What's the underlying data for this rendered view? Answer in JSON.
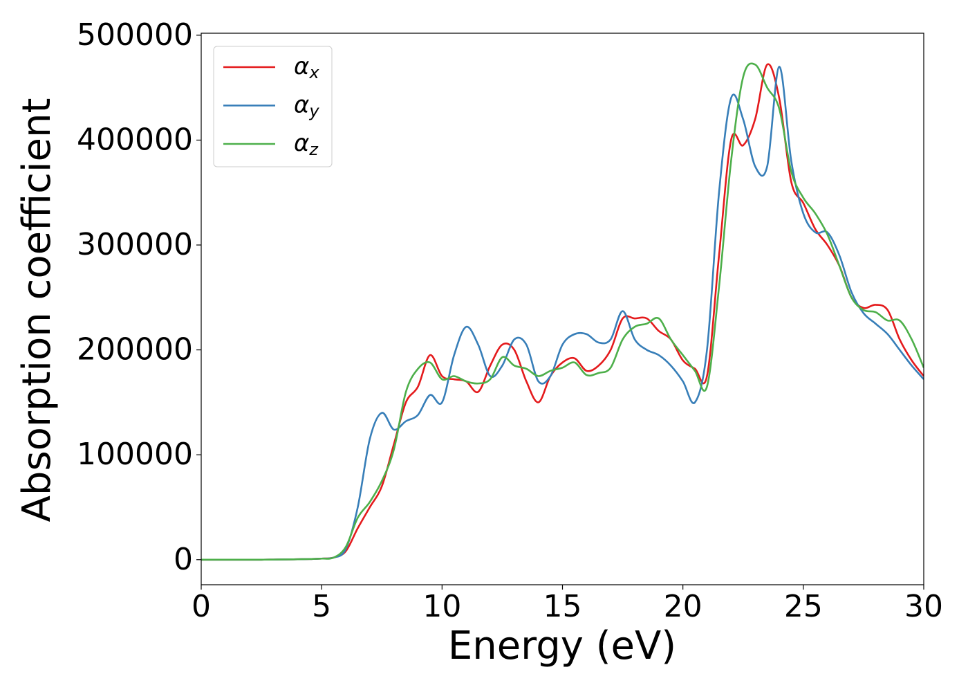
{
  "chart_data": {
    "type": "line",
    "xlabel": "Energy (eV)",
    "ylabel": "Absorption coefficient",
    "x": [
      0,
      0.5,
      1,
      1.5,
      2,
      2.5,
      3,
      3.5,
      4,
      4.5,
      5,
      5.5,
      6,
      6.5,
      7,
      7.5,
      8,
      8.5,
      9,
      9.5,
      10,
      10.5,
      11,
      11.5,
      12,
      12.5,
      13,
      13.5,
      14,
      14.5,
      15,
      15.5,
      16,
      16.5,
      17,
      17.5,
      18,
      18.5,
      19,
      19.5,
      20,
      20.5,
      21,
      21.5,
      22,
      22.5,
      23,
      23.5,
      24,
      24.5,
      25,
      25.5,
      26,
      26.5,
      27,
      27.5,
      28,
      28.5,
      29,
      29.5,
      30
    ],
    "series": [
      {
        "name": "αx",
        "color": "#e41a1c",
        "values": [
          0,
          0,
          0,
          0,
          0,
          0,
          100,
          200,
          400,
          600,
          1000,
          2000,
          8000,
          30000,
          50000,
          70000,
          110000,
          150000,
          165000,
          195000,
          175000,
          172000,
          170000,
          160000,
          185000,
          205000,
          200000,
          170000,
          150000,
          175000,
          188000,
          192000,
          180000,
          185000,
          200000,
          230000,
          230000,
          230000,
          218000,
          210000,
          190000,
          182000,
          175000,
          290000,
          400000,
          395000,
          420000,
          472000,
          440000,
          360000,
          340000,
          315000,
          300000,
          280000,
          250000,
          240000,
          243000,
          238000,
          210000,
          190000,
          175000
        ]
      },
      {
        "name": "αy",
        "color": "#377eb8",
        "values": [
          0,
          0,
          0,
          0,
          0,
          0,
          100,
          200,
          400,
          600,
          1000,
          2000,
          10000,
          50000,
          115000,
          140000,
          124000,
          132000,
          138000,
          157000,
          150000,
          195000,
          222000,
          205000,
          175000,
          185000,
          210000,
          205000,
          170000,
          175000,
          205000,
          215000,
          215000,
          207000,
          210000,
          237000,
          210000,
          200000,
          195000,
          185000,
          170000,
          150000,
          200000,
          350000,
          440000,
          420000,
          375000,
          375000,
          470000,
          380000,
          330000,
          312000,
          312000,
          290000,
          255000,
          235000,
          225000,
          215000,
          200000,
          185000,
          172000
        ]
      },
      {
        "name": "αz",
        "color": "#4daf4a",
        "values": [
          0,
          0,
          0,
          0,
          0,
          0,
          100,
          200,
          400,
          600,
          1000,
          2000,
          12000,
          40000,
          55000,
          75000,
          105000,
          160000,
          182000,
          188000,
          172000,
          175000,
          170000,
          168000,
          172000,
          193000,
          185000,
          182000,
          175000,
          180000,
          183000,
          188000,
          176000,
          178000,
          183000,
          210000,
          222000,
          225000,
          230000,
          210000,
          195000,
          180000,
          165000,
          260000,
          380000,
          460000,
          472000,
          450000,
          430000,
          370000,
          345000,
          330000,
          310000,
          280000,
          250000,
          238000,
          236000,
          228000,
          228000,
          210000,
          183000
        ]
      }
    ],
    "xlim": [
      0,
      30
    ],
    "ylim": [
      -23900,
      501900
    ],
    "xticks": [
      0,
      5,
      10,
      15,
      20,
      25,
      30
    ],
    "yticks": [
      0,
      100000,
      200000,
      300000,
      400000,
      500000
    ],
    "grid": false,
    "legend": "upper left"
  }
}
